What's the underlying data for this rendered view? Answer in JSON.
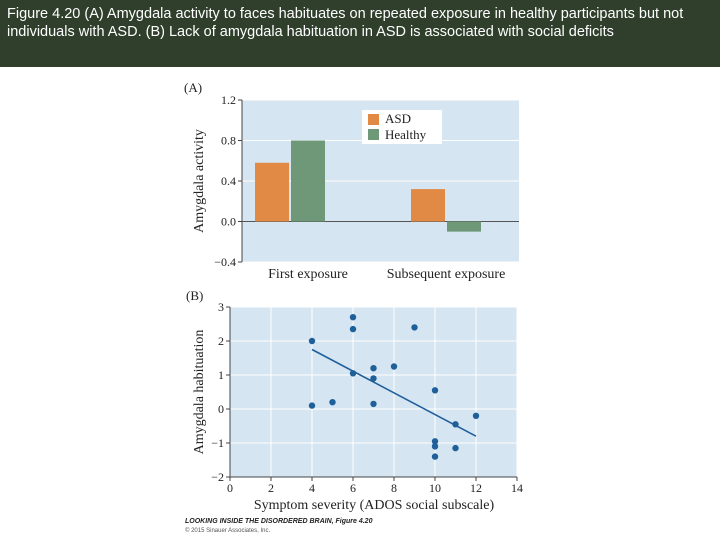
{
  "caption": "Figure 4.20 (A) Amygdala activity to faces habituates on repeated exposure in healthy participants but not individuals with ASD. (B) Lack of amygdala habituation in ASD is associated with social deficits",
  "footer": {
    "title": "LOOKING INSIDE THE DISORDERED BRAIN, Figure 4.20",
    "copyright": "© 2015 Sinauer Associates, Inc."
  },
  "colors": {
    "asd": "#e08a45",
    "healthy": "#6e9878",
    "panel_bg": "#d5e6f2",
    "dot": "#1f5f9a",
    "caption_bg": "#2f3f2c"
  },
  "chart_data": [
    {
      "type": "bar",
      "panel_label": "(A)",
      "categories": [
        "First exposure",
        "Subsequent exposure"
      ],
      "series": [
        {
          "name": "ASD",
          "values": [
            0.58,
            0.32
          ]
        },
        {
          "name": "Healthy",
          "values": [
            0.8,
            -0.1
          ]
        }
      ],
      "ylabel": "Amygdala activity",
      "ylim": [
        -0.4,
        1.2
      ],
      "yticks": [
        -0.4,
        0.0,
        0.4,
        0.8,
        1.2
      ],
      "ytick_labels": [
        "−0.4",
        "0.0",
        "0.4",
        "0.8",
        "1.2"
      ],
      "legend": "top-right",
      "grid": true
    },
    {
      "type": "scatter",
      "panel_label": "(B)",
      "points": [
        {
          "x": 4,
          "y": 2.0
        },
        {
          "x": 4,
          "y": 0.1
        },
        {
          "x": 5,
          "y": 0.2
        },
        {
          "x": 6,
          "y": 2.7
        },
        {
          "x": 6,
          "y": 2.35
        },
        {
          "x": 6,
          "y": 1.05
        },
        {
          "x": 7,
          "y": 1.2
        },
        {
          "x": 7,
          "y": 0.9
        },
        {
          "x": 7,
          "y": 0.15
        },
        {
          "x": 8,
          "y": 1.25
        },
        {
          "x": 9,
          "y": 2.4
        },
        {
          "x": 10,
          "y": 0.55
        },
        {
          "x": 10,
          "y": -0.95
        },
        {
          "x": 10,
          "y": -1.1
        },
        {
          "x": 10,
          "y": -1.4
        },
        {
          "x": 11,
          "y": -0.45
        },
        {
          "x": 11,
          "y": -1.15
        },
        {
          "x": 12,
          "y": -0.2
        }
      ],
      "fit_line": {
        "x": [
          4,
          12
        ],
        "y": [
          1.75,
          -0.8
        ]
      },
      "xlabel": "Symptom severity (ADOS social subscale)",
      "ylabel": "Amygdala habituation",
      "xlim": [
        0,
        14
      ],
      "ylim": [
        -2,
        3
      ],
      "xticks": [
        0,
        2,
        4,
        6,
        8,
        10,
        12,
        14
      ],
      "xtick_labels": [
        "0",
        "2",
        "4",
        "6",
        "8",
        "10",
        "12",
        "14"
      ],
      "yticks": [
        -2,
        -1,
        0,
        1,
        2,
        3
      ],
      "ytick_labels": [
        "−2",
        "−1",
        "0",
        "1",
        "2",
        "3"
      ],
      "grid": true
    }
  ]
}
